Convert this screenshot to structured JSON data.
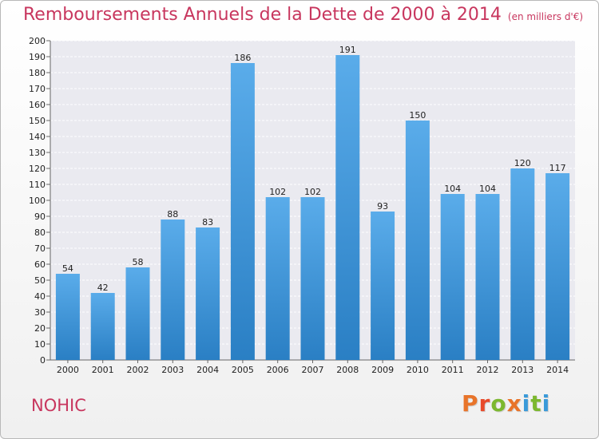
{
  "chart_data": {
    "type": "bar",
    "title": "Remboursements Annuels de la Dette de 2000 à 2014",
    "unit": "(en milliers d'€)",
    "categories": [
      "2000",
      "2001",
      "2002",
      "2003",
      "2004",
      "2005",
      "2006",
      "2007",
      "2008",
      "2009",
      "2010",
      "2011",
      "2012",
      "2013",
      "2014"
    ],
    "values": [
      54,
      42,
      58,
      88,
      83,
      186,
      102,
      102,
      191,
      93,
      150,
      104,
      104,
      120,
      117
    ],
    "ylim": [
      0,
      200
    ],
    "ytick_step": 10,
    "grid": true,
    "bar_color_top": "#5aacea",
    "bar_color_bottom": "#2a7fc4"
  },
  "footer": {
    "commune": "NOHIC",
    "brand": "Proxiti",
    "brand_colors": [
      "#e8742a",
      "#e84a2a",
      "#7cb82f",
      "#e8742a",
      "#3a9ad9",
      "#7cb82f",
      "#3a9ad9"
    ]
  }
}
